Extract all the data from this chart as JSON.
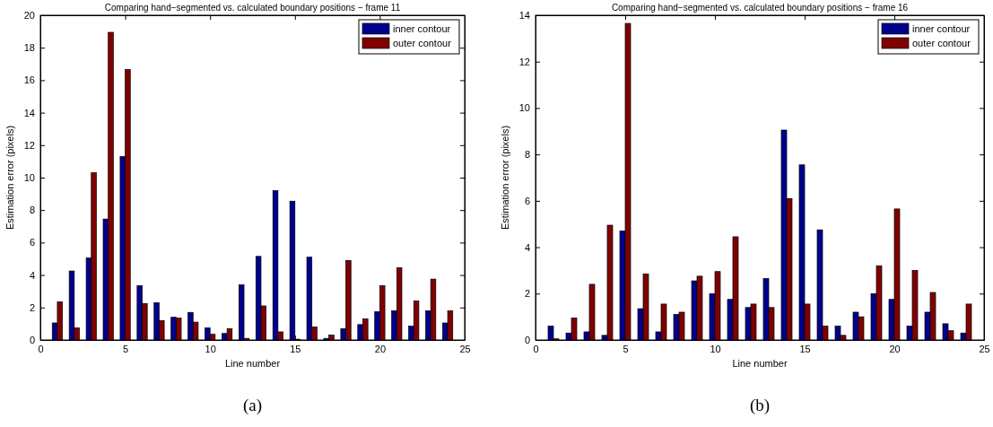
{
  "chart_data": [
    {
      "type": "bar",
      "title": "Comparing hand−segmented vs. calculated boundary positions − frame 11",
      "xlabel": "Line number",
      "ylabel": "Estimation error (pixels)",
      "x": [
        1,
        2,
        3,
        4,
        5,
        6,
        7,
        8,
        9,
        10,
        11,
        12,
        13,
        14,
        15,
        16,
        17,
        18,
        19,
        20,
        21,
        22,
        23,
        24
      ],
      "series": [
        {
          "name": "inner contour",
          "color": "#00008f",
          "values": [
            1.05,
            4.25,
            5.05,
            7.45,
            11.3,
            3.35,
            2.3,
            1.4,
            1.7,
            0.75,
            0.4,
            3.4,
            5.15,
            9.2,
            8.55,
            5.1,
            0.1,
            0.7,
            0.95,
            1.75,
            1.8,
            0.85,
            1.8,
            1.05
          ]
        },
        {
          "name": "outer contour",
          "color": "#800000",
          "values": [
            2.35,
            0.75,
            10.3,
            18.95,
            16.65,
            2.25,
            1.2,
            1.35,
            1.1,
            0.35,
            0.7,
            0.1,
            2.1,
            0.5,
            0.05,
            0.8,
            0.3,
            4.9,
            1.3,
            3.35,
            4.45,
            2.4,
            3.75,
            1.8
          ]
        }
      ],
      "xlim": [
        0,
        25
      ],
      "xticks": [
        0,
        5,
        10,
        15,
        20,
        25
      ],
      "ylim": [
        0,
        20
      ],
      "yticks": [
        0,
        2,
        4,
        6,
        8,
        10,
        12,
        14,
        16,
        18,
        20
      ],
      "legend": "top right",
      "annotations": [
        "(a)"
      ]
    },
    {
      "type": "bar",
      "title": "Comparing hand−segmented vs. calculated boundary positions − frame 16",
      "xlabel": "Line number",
      "ylabel": "Estimation error (pixels)",
      "x": [
        1,
        2,
        3,
        4,
        5,
        6,
        7,
        8,
        9,
        10,
        11,
        12,
        13,
        14,
        15,
        16,
        17,
        18,
        19,
        20,
        21,
        22,
        23,
        24
      ],
      "series": [
        {
          "name": "inner contour",
          "color": "#00008f",
          "values": [
            0.6,
            0.3,
            0.35,
            0.2,
            4.7,
            1.35,
            0.35,
            1.1,
            2.55,
            2.0,
            1.75,
            1.4,
            2.65,
            9.05,
            7.55,
            4.75,
            0.6,
            1.2,
            2.0,
            1.75,
            0.6,
            1.2,
            0.7,
            0.3
          ]
        },
        {
          "name": "outer contour",
          "color": "#800000",
          "values": [
            0.05,
            0.95,
            2.4,
            4.95,
            13.65,
            2.85,
            1.55,
            1.2,
            2.75,
            2.95,
            4.45,
            1.55,
            1.4,
            6.1,
            1.55,
            0.6,
            0.2,
            1.0,
            3.2,
            5.65,
            3.0,
            2.05,
            0.4,
            1.55
          ]
        }
      ],
      "xlim": [
        0,
        25
      ],
      "xticks": [
        0,
        5,
        10,
        15,
        20,
        25
      ],
      "ylim": [
        0,
        14
      ],
      "yticks": [
        0,
        2,
        4,
        6,
        8,
        10,
        12,
        14
      ],
      "legend": "top right",
      "annotations": [
        "(b)"
      ]
    }
  ]
}
